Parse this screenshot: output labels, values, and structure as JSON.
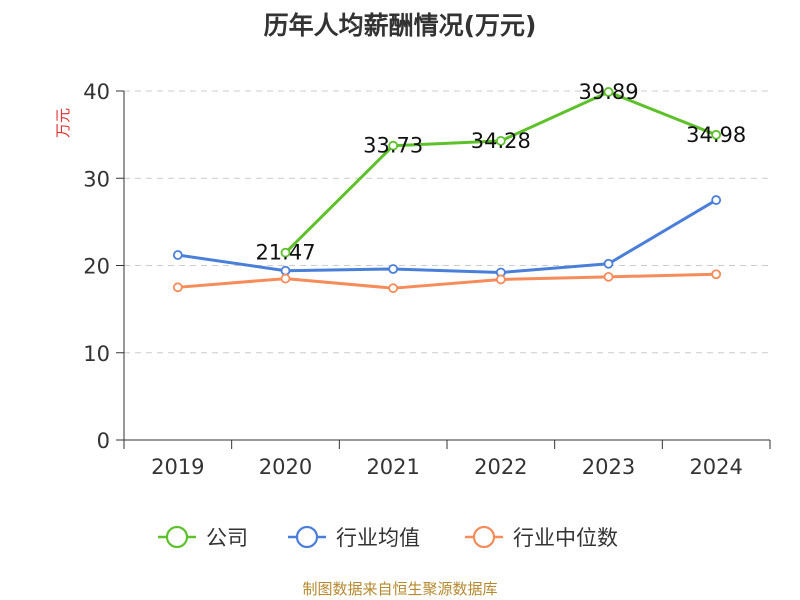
{
  "chart_data": {
    "type": "line",
    "title": "历年人均薪酬情况(万元)",
    "ylabel": "万元",
    "xlabel": "",
    "categories": [
      "2019",
      "2020",
      "2021",
      "2022",
      "2023",
      "2024"
    ],
    "ylim": [
      0,
      40
    ],
    "yticks": [
      0,
      10,
      20,
      30,
      40
    ],
    "grid": true,
    "legend_position": "bottom",
    "series": [
      {
        "name": "公司",
        "color": "#5ec12c",
        "values": [
          null,
          21.47,
          33.73,
          34.28,
          39.89,
          34.98
        ],
        "labels": [
          "",
          "21.47",
          "33.73",
          "34.28",
          "39.89",
          "34.98"
        ]
      },
      {
        "name": "行业均值",
        "color": "#4a7fd9",
        "values": [
          21.2,
          19.4,
          19.6,
          19.2,
          20.2,
          27.5
        ]
      },
      {
        "name": "行业中位数",
        "color": "#f58c5a",
        "values": [
          17.5,
          18.5,
          17.4,
          18.4,
          18.7,
          19.0
        ]
      }
    ]
  },
  "source": "制图数据来自恒生聚源数据库",
  "colors": {
    "axis": "#333333",
    "grid": "#cccccc",
    "ylabel": "#e0312f",
    "title": "#333333"
  }
}
